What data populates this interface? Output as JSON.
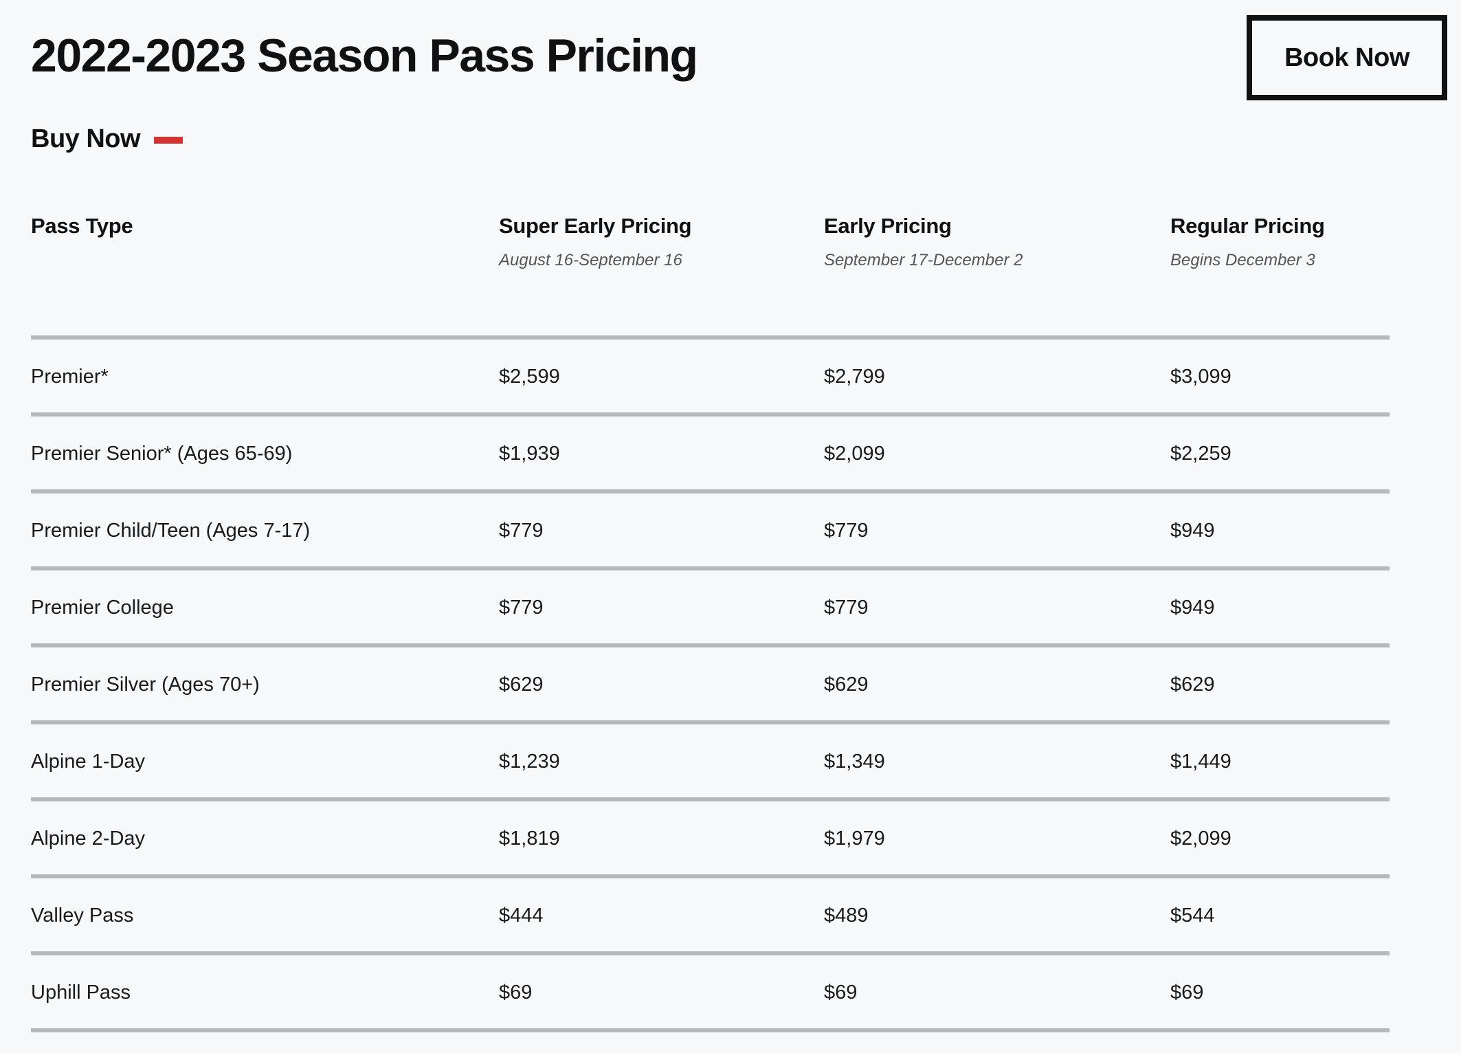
{
  "header": {
    "title": "2022-2023 Season Pass Pricing",
    "book_now_label": "Book Now"
  },
  "buy_now": {
    "label": "Buy Now",
    "accent_color": "#d63232"
  },
  "table": {
    "columns": [
      {
        "label": "Pass Type",
        "sublabel": ""
      },
      {
        "label": "Super Early Pricing",
        "sublabel": "August 16-September 16"
      },
      {
        "label": "Early Pricing",
        "sublabel": "September 17-December 2"
      },
      {
        "label": "Regular Pricing",
        "sublabel": "Begins December 3"
      }
    ],
    "rows": [
      {
        "pass_type": "Premier*",
        "super_early": "$2,599",
        "early": "$2,799",
        "regular": "$3,099"
      },
      {
        "pass_type": "Premier Senior* (Ages 65-69)",
        "super_early": "$1,939",
        "early": "$2,099",
        "regular": "$2,259"
      },
      {
        "pass_type": "Premier Child/Teen (Ages 7-17)",
        "super_early": "$779",
        "early": "$779",
        "regular": "$949"
      },
      {
        "pass_type": "Premier College",
        "super_early": "$779",
        "early": "$779",
        "regular": "$949"
      },
      {
        "pass_type": "Premier Silver (Ages 70+)",
        "super_early": "$629",
        "early": "$629",
        "regular": "$629"
      },
      {
        "pass_type": "Alpine 1-Day",
        "super_early": "$1,239",
        "early": "$1,349",
        "regular": "$1,449"
      },
      {
        "pass_type": "Alpine 2-Day",
        "super_early": "$1,819",
        "early": "$1,979",
        "regular": "$2,099"
      },
      {
        "pass_type": "Valley Pass",
        "super_early": "$444",
        "early": "$489",
        "regular": "$544"
      },
      {
        "pass_type": "Uphill Pass",
        "super_early": "$69",
        "early": "$69",
        "regular": "$69"
      }
    ]
  }
}
